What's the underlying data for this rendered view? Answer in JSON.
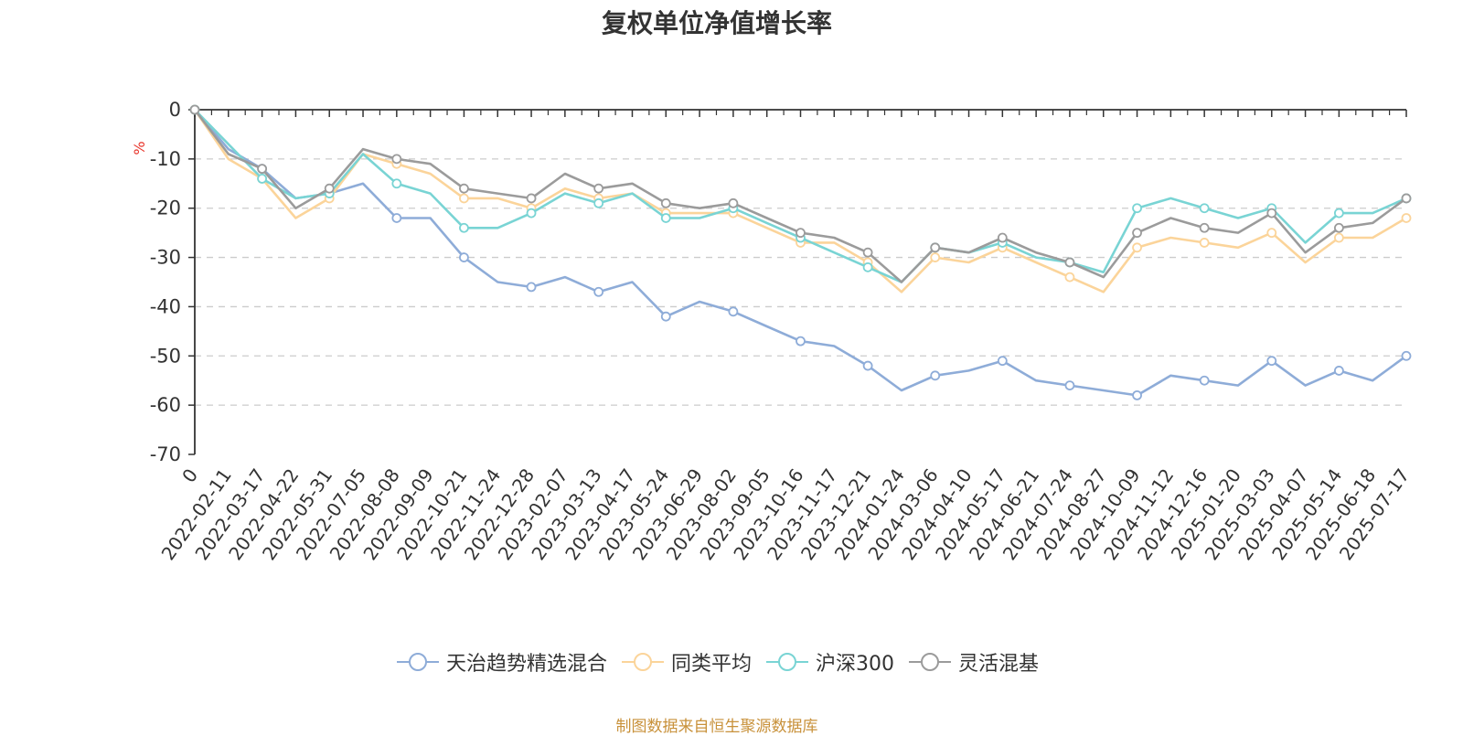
{
  "chart_data": {
    "type": "line",
    "title": "复权单位净值增长率",
    "ylabel": "%",
    "ylim": [
      -70,
      0
    ],
    "yticks": [
      0,
      -10,
      -20,
      -30,
      -40,
      -50,
      -60,
      -70
    ],
    "grid": true,
    "legend_position": "bottom",
    "x_tick_labels": [
      "0",
      "2022-02-11",
      "2022-03-17",
      "2022-04-22",
      "2022-05-31",
      "2022-07-05",
      "2022-08-08",
      "2022-09-09",
      "2022-10-21",
      "2022-11-24",
      "2022-12-28",
      "2023-02-07",
      "2023-03-13",
      "2023-04-17",
      "2023-05-24",
      "2023-06-29",
      "2023-08-02",
      "2023-09-05",
      "2023-10-16",
      "2023-11-17",
      "2023-12-21",
      "2024-01-24",
      "2024-03-06",
      "2024-04-10",
      "2024-05-17",
      "2024-06-21",
      "2024-07-24",
      "2024-08-27",
      "2024-10-09",
      "2024-11-12",
      "2024-12-16",
      "2025-01-20",
      "2025-03-03",
      "2025-04-07",
      "2025-05-14",
      "2025-06-18",
      "2025-07-17"
    ],
    "x": [
      "0",
      "2022-02-11",
      "2022-03-17",
      "2022-04-22",
      "2022-05-31",
      "2022-07-05",
      "2022-08-08",
      "2022-09-09",
      "2022-10-21",
      "2022-11-24",
      "2022-12-28",
      "2023-02-07",
      "2023-03-13",
      "2023-04-17",
      "2023-05-24",
      "2023-06-29",
      "2023-08-02",
      "2023-09-05",
      "2023-10-16",
      "2023-11-17",
      "2023-12-21",
      "2024-01-24",
      "2024-03-06",
      "2024-04-10",
      "2024-05-17",
      "2024-06-21",
      "2024-07-24",
      "2024-08-27",
      "2024-10-09",
      "2024-11-12",
      "2024-12-16",
      "2025-01-20",
      "2025-03-03",
      "2025-04-07",
      "2025-05-14",
      "2025-06-18",
      "2025-07-17"
    ],
    "series": [
      {
        "name": "天治趋势精选混合",
        "color": "#8eacd8",
        "values": [
          0,
          -8,
          -12,
          -18,
          -17,
          -15,
          -22,
          -22,
          -30,
          -35,
          -36,
          -34,
          -37,
          -35,
          -42,
          -39,
          -41,
          -44,
          -47,
          -48,
          -52,
          -57,
          -54,
          -53,
          -51,
          -55,
          -56,
          -57,
          -58,
          -54,
          -55,
          -56,
          -51,
          -56,
          -53,
          -55,
          -50
        ]
      },
      {
        "name": "同类平均",
        "color": "#fbd49a",
        "values": [
          0,
          -10,
          -14,
          -22,
          -18,
          -9,
          -11,
          -13,
          -18,
          -18,
          -20,
          -16,
          -18,
          -17,
          -21,
          -21,
          -21,
          -24,
          -27,
          -27,
          -31,
          -37,
          -30,
          -31,
          -28,
          -31,
          -34,
          -37,
          -28,
          -26,
          -27,
          -28,
          -25,
          -31,
          -26,
          -26,
          -22
        ]
      },
      {
        "name": "沪深300",
        "color": "#79d4d4",
        "values": [
          0,
          -7,
          -14,
          -18,
          -17,
          -9,
          -15,
          -17,
          -24,
          -24,
          -21,
          -17,
          -19,
          -17,
          -22,
          -22,
          -20,
          -23,
          -26,
          -29,
          -32,
          -35,
          -28,
          -29,
          -27,
          -30,
          -31,
          -33,
          -20,
          -18,
          -20,
          -22,
          -20,
          -27,
          -21,
          -21,
          -18
        ]
      },
      {
        "name": "灵活混基",
        "color": "#9b9b9b",
        "values": [
          0,
          -9,
          -12,
          -20,
          -16,
          -8,
          -10,
          -11,
          -16,
          -17,
          -18,
          -13,
          -16,
          -15,
          -19,
          -20,
          -19,
          -22,
          -25,
          -26,
          -29,
          -35,
          -28,
          -29,
          -26,
          -29,
          -31,
          -34,
          -25,
          -22,
          -24,
          -25,
          -21,
          -29,
          -24,
          -23,
          -18
        ]
      }
    ]
  },
  "source_note": "制图数据来自恒生聚源数据库"
}
